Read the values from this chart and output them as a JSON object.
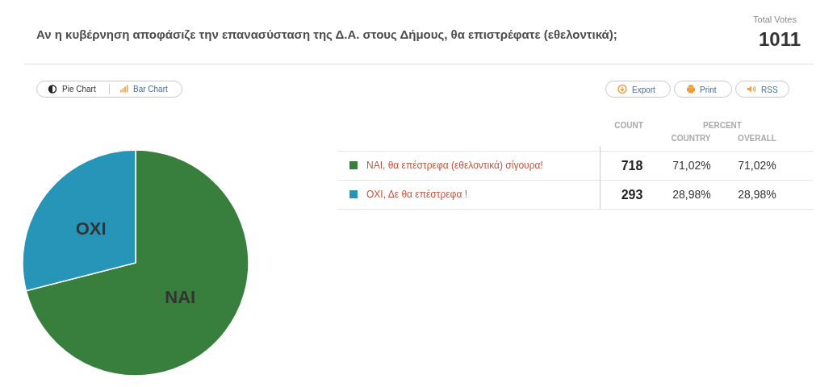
{
  "chart_data": {
    "type": "pie",
    "title": "Αν η κυβέρνηση αποφάσιζε την επανασύσταση της Δ.Α. στους Δήμους, θα επιστρέφατε (εθελοντικά);",
    "categories": [
      "ΝΑΙ, θα επέστρεφα (εθελοντικά) σίγουρα!",
      "ΟΧΙ, Δε θα επέστρεφα !"
    ],
    "values": [
      718,
      293
    ],
    "colors": [
      "#387f3d",
      "#2795b8"
    ],
    "legend": "right",
    "data_labels": true,
    "annotations": [
      "ΝΑΙ",
      "ΟΧΙ",
      "Total Votes",
      "1011",
      "COUNT",
      "PERCENT",
      "COUNTRY",
      "OVERALL",
      "71,02%",
      "71,02%",
      "28,98%",
      "28,98%",
      "Pie Chart",
      "Bar Chart",
      "Export",
      "Print",
      "RSS"
    ]
  }
}
